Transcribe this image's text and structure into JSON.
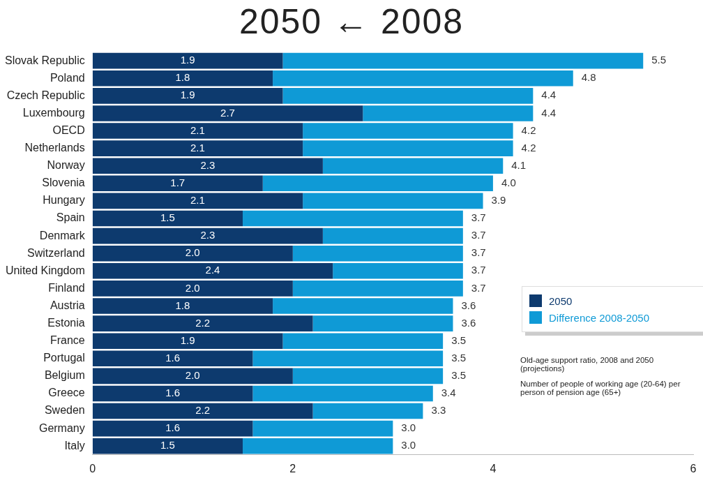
{
  "chart_data": {
    "type": "bar",
    "orientation": "horizontal",
    "stacked": true,
    "title": "2050 ← 2008",
    "categories": [
      "Slovak Republic",
      "Poland",
      "Czech Republic",
      "Luxembourg",
      "OECD",
      "Netherlands",
      "Norway",
      "Slovenia",
      "Hungary",
      "Spain",
      "Denmark",
      "Switzerland",
      "United Kingdom",
      "Finland",
      "Austria",
      "Estonia",
      "France",
      "Portugal",
      "Belgium",
      "Greece",
      "Sweden",
      "Germany",
      "Italy"
    ],
    "series": [
      {
        "name": "2050",
        "color": "#0d3a6e",
        "values": [
          1.9,
          1.8,
          1.9,
          2.7,
          2.1,
          2.1,
          2.3,
          1.7,
          2.1,
          1.5,
          2.3,
          2.0,
          2.4,
          2.0,
          1.8,
          2.2,
          1.9,
          1.6,
          2.0,
          1.6,
          2.2,
          1.6,
          1.5
        ],
        "value_labels": [
          "1.9",
          "1.8",
          "1.9",
          "2.7",
          "2.1",
          "2.1",
          "2.3",
          "1.7",
          "2.1",
          "1.5",
          "2.3",
          "2.0",
          "2.4",
          "2.0",
          "1.8",
          "2.2",
          "1.9",
          "1.6",
          "2.0",
          "1.6",
          "2.2",
          "1.6",
          "1.5"
        ]
      },
      {
        "name": "Difference 2008-2050",
        "color": "#0f9ad6",
        "values": [
          3.6,
          3.0,
          2.5,
          1.7,
          2.1,
          2.1,
          1.8,
          2.3,
          1.8,
          2.2,
          1.4,
          1.7,
          1.3,
          1.7,
          1.8,
          1.4,
          1.6,
          1.9,
          1.5,
          1.8,
          1.1,
          1.4,
          1.5
        ]
      }
    ],
    "totals": [
      "5.5",
      "4.8",
      "4.4",
      "4.4",
      "4.2",
      "4.2",
      "4.1",
      "4.0",
      "3.9",
      "3.7",
      "3.7",
      "3.7",
      "3.7",
      "3.7",
      "3.6",
      "3.6",
      "3.5",
      "3.5",
      "3.5",
      "3.4",
      "3.3",
      "3.0",
      "3.0"
    ],
    "xlim": [
      0,
      6
    ],
    "xticks": [
      0,
      2,
      4,
      6
    ],
    "grid": false,
    "legend": "right",
    "annotations": [
      "Old-age support ratio, 2008 and 2050 (projections)",
      "Number of people of working age (20-64) per person of pension age (65+)"
    ]
  }
}
